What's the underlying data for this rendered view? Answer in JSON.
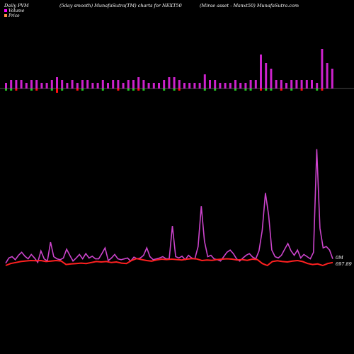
{
  "header": {
    "left": "Daily PVM",
    "middle": "(5day smooth) MunafaSutra(TM) charts for NEXT50",
    "right": "(Mirae asset - Msnxt50) MunafaSutra.com"
  },
  "legend": [
    {
      "label": "Volume",
      "color": "#ff00ff"
    },
    {
      "label": "Price",
      "color": "#ff8c42"
    }
  ],
  "colors": {
    "volume_up": "#cc22cc",
    "volume_down_below": "#22cc22",
    "volume_red": "#ff1010",
    "volume_line": "#cc44cc",
    "price_line": "#ff2020",
    "baseline": "#999999"
  },
  "chart_data": {
    "type": "bar",
    "volume_bars": {
      "values": [
        2,
        3,
        3,
        3,
        2,
        3,
        3,
        2,
        2,
        3,
        4,
        3,
        2,
        3,
        2,
        3,
        3,
        2,
        2,
        3,
        2,
        3,
        3,
        2,
        3,
        3,
        4,
        3,
        2,
        2,
        2,
        3,
        4,
        4,
        3,
        2,
        2,
        2,
        2,
        5,
        3,
        3,
        2,
        2,
        2,
        3,
        2,
        2,
        3,
        3,
        12,
        9,
        7,
        3,
        3,
        2,
        3,
        3,
        3,
        3,
        3,
        2,
        14,
        9,
        7
      ],
      "below_values": [
        1,
        1,
        1,
        0,
        0,
        1,
        1,
        0,
        0,
        1,
        2,
        1,
        0,
        0,
        1,
        1,
        0,
        0,
        0,
        1,
        0,
        0,
        1,
        0,
        1,
        1,
        1,
        1,
        0,
        0,
        0,
        1,
        0,
        1,
        1,
        0,
        0,
        0,
        0,
        1,
        0,
        1,
        0,
        0,
        0,
        1,
        0,
        1,
        1,
        0,
        1,
        1,
        1,
        0,
        1,
        0,
        1,
        0,
        1,
        0,
        0,
        1,
        1,
        0,
        0
      ]
    },
    "volume_line": {
      "values": [
        10,
        22,
        25,
        18,
        28,
        35,
        26,
        20,
        30,
        22,
        12,
        38,
        20,
        15,
        58,
        25,
        20,
        18,
        22,
        42,
        28,
        15,
        22,
        30,
        20,
        32,
        22,
        26,
        20,
        20,
        32,
        45,
        16,
        22,
        30,
        20,
        18,
        20,
        22,
        15,
        24,
        20,
        22,
        28,
        45,
        25,
        18,
        20,
        22,
        25,
        20,
        20,
        95,
        25,
        22,
        26,
        18,
        28,
        22,
        20,
        48,
        140,
        60,
        25,
        28,
        20,
        18,
        15,
        25,
        35,
        40,
        32,
        20,
        15,
        22,
        28,
        32,
        24,
        20,
        38,
        85,
        170,
        120,
        40,
        25,
        22,
        28,
        42,
        55,
        38,
        28,
        40,
        22,
        30,
        25,
        20,
        35,
        270,
        90,
        45,
        48,
        40,
        20
      ],
      "last_label": "0M"
    },
    "price_line": {
      "values": [
        640,
        650,
        655,
        660,
        663,
        665,
        664,
        665,
        660,
        662,
        665,
        663,
        645,
        648,
        650,
        652,
        650,
        655,
        660,
        658,
        660,
        655,
        658,
        652,
        650,
        665,
        675,
        670,
        665,
        662,
        668,
        672,
        670,
        672,
        670,
        668,
        672,
        675,
        673,
        665,
        668,
        666,
        670,
        672,
        674,
        672,
        668,
        670,
        666,
        672,
        670,
        650,
        640,
        660,
        664,
        660,
        658,
        662,
        665,
        660,
        650,
        645,
        648,
        640,
        650,
        655
      ],
      "last_label": "697.89"
    }
  }
}
